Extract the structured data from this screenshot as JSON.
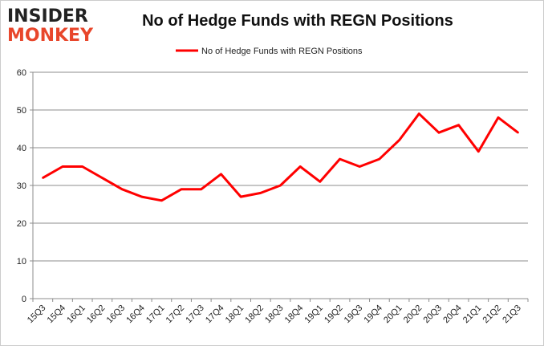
{
  "logo": {
    "line1": "INSIDER",
    "line2": "MONKEY"
  },
  "chart_data": {
    "type": "line",
    "title": "No of Hedge Funds with REGN Positions",
    "xlabel": "",
    "ylabel": "",
    "categories": [
      "15Q3",
      "15Q4",
      "16Q1",
      "16Q2",
      "16Q3",
      "16Q4",
      "17Q1",
      "17Q2",
      "17Q3",
      "17Q4",
      "18Q1",
      "18Q2",
      "18Q3",
      "18Q4",
      "19Q1",
      "19Q2",
      "19Q3",
      "19Q4",
      "20Q1",
      "20Q2",
      "20Q3",
      "20Q4",
      "21Q1",
      "21Q2",
      "21Q3"
    ],
    "series": [
      {
        "name": "No of Hedge Funds with REGN Positions",
        "color": "#ff0000",
        "values": [
          32,
          35,
          35,
          32,
          29,
          27,
          26,
          29,
          29,
          33,
          27,
          28,
          30,
          35,
          31,
          37,
          35,
          37,
          42,
          49,
          44,
          46,
          39,
          48,
          44
        ]
      }
    ],
    "ylim": [
      0,
      60
    ],
    "yticks": [
      0,
      10,
      20,
      30,
      40,
      50,
      60
    ],
    "grid": true,
    "legend": "top-center"
  }
}
